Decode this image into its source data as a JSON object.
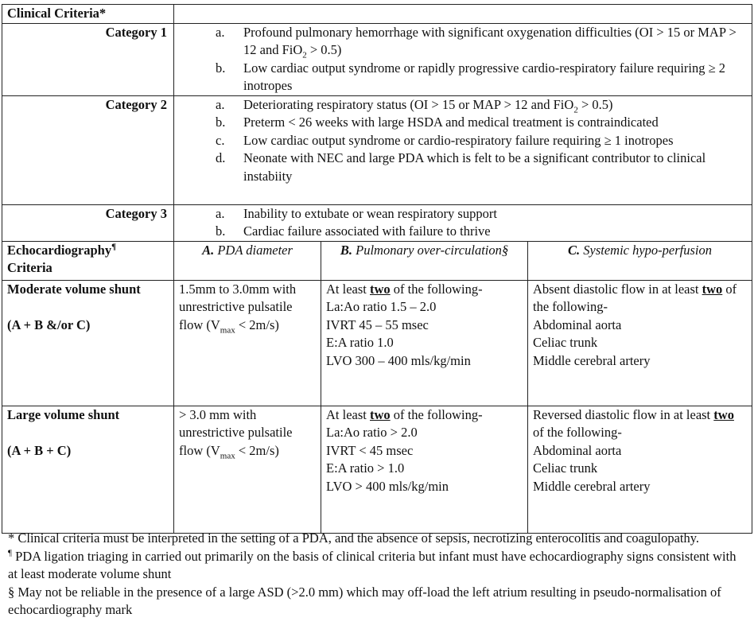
{
  "clinical": {
    "title": "Clinical Criteria*",
    "categories": [
      {
        "label": "Category 1",
        "items": [
          {
            "marker": "a.",
            "pre": "Profound pulmonary hemorrhage with significant oxygenation difficulties (OI > 15 or MAP > 12 and FiO",
            "sub": "2",
            "post": " > 0.5)"
          },
          {
            "marker": "b.",
            "pre": "Low cardiac output syndrome or rapidly progressive cardio-respiratory failure requiring ≥ 2 inotropes",
            "sub": "",
            "post": ""
          }
        ]
      },
      {
        "label": "Category 2",
        "items": [
          {
            "marker": "a.",
            "pre": "Deteriorating respiratory status (OI > 15 or MAP > 12 and FiO",
            "sub": "2",
            "post": " > 0.5)"
          },
          {
            "marker": "b.",
            "pre": "Preterm < 26 weeks with large HSDA and medical treatment is contraindicated",
            "sub": "",
            "post": ""
          },
          {
            "marker": "c.",
            "pre": "Low cardiac output syndrome or cardio-respiratory failure requiring ≥ 1 inotropes",
            "sub": "",
            "post": ""
          },
          {
            "marker": "d.",
            "pre": "Neonate with NEC and large PDA which is felt to be a significant contributor to clinical instabiity",
            "sub": "",
            "post": ""
          }
        ]
      },
      {
        "label": "Category 3",
        "items": [
          {
            "marker": "a.",
            "pre": "Inability to extubate or wean respiratory support",
            "sub": "",
            "post": ""
          },
          {
            "marker": "b.",
            "pre": "Cardiac failure associated with failure to thrive",
            "sub": "",
            "post": ""
          }
        ]
      }
    ]
  },
  "echo": {
    "title": "Echocardiography",
    "title_mark": "¶",
    "title2": "Criteria",
    "columns": [
      {
        "letter": "A.",
        "text": " PDA diameter"
      },
      {
        "letter": "B.",
        "text": " Pulmonary over-circulation§"
      },
      {
        "letter": "C.",
        "text": " Systemic hypo-perfusion"
      }
    ],
    "rows": [
      {
        "label": "Moderate volume shunt",
        "formula": "(A + B &/or C)",
        "a": {
          "pre": "1.5mm to 3.0mm with unrestrictive pulsatile flow (V",
          "sub": "max",
          "post": " < 2m/s)"
        },
        "b": {
          "intro_pre": "At least ",
          "intro_u": "two",
          "intro_post": " of the following-",
          "lines": [
            "La:Ao ratio 1.5 – 2.0",
            "IVRT 45 – 55 msec",
            "E:A ratio 1.0",
            "LVO 300 – 400 mls/kg/min"
          ]
        },
        "c": {
          "intro_pre": "Absent diastolic flow in at least ",
          "intro_u": "two",
          "intro_post": " of the following-",
          "lines": [
            "Abdominal aorta",
            "Celiac trunk",
            "Middle cerebral artery"
          ]
        }
      },
      {
        "label": "Large volume shunt",
        "formula": "(A + B + C)",
        "a": {
          "pre": "> 3.0 mm with unrestrictive pulsatile flow (V",
          "sub": "max",
          "post": " < 2m/s)"
        },
        "b": {
          "intro_pre": "At least ",
          "intro_u": "two",
          "intro_post": " of the following-",
          "lines": [
            "La:Ao ratio > 2.0",
            "IVRT < 45 msec",
            "E:A ratio > 1.0",
            "LVO > 400 mls/kg/min"
          ]
        },
        "c": {
          "intro_pre": "Reversed diastolic flow in at least ",
          "intro_u": "two",
          "intro_post": " of the following-",
          "lines": [
            "Abdominal aorta",
            "Celiac trunk",
            "Middle cerebral artery"
          ]
        }
      }
    ]
  },
  "footnotes": [
    {
      "mark": "*",
      "text": " Clinical criteria must be interpreted in the setting of a PDA, and the absence of sepsis, necrotizing enterocolitis and coagulopathy."
    },
    {
      "mark": "¶",
      "text": " PDA ligation triaging in carried out primarily on the basis of clinical criteria but infant must have echocardiography signs consistent with at least moderate volume shunt"
    },
    {
      "mark": "§",
      "text": " May not be reliable in the presence of a large ASD (>2.0 mm) which may off-load the left atrium resulting in pseudo-normalisation of echocardiography mark"
    }
  ]
}
